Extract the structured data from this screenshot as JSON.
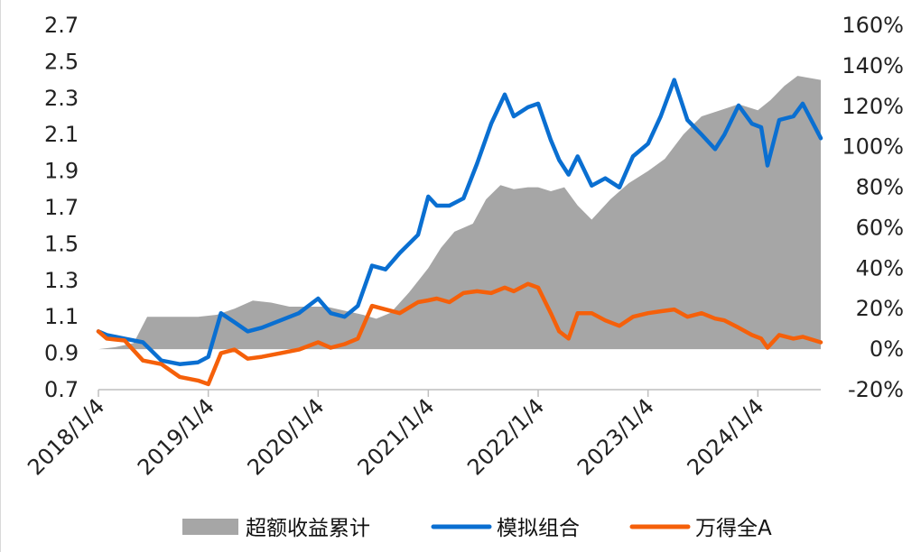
{
  "chart_data": {
    "type": "line",
    "title": "",
    "x_tick_labels": [
      "2018/1/4",
      "2019/1/4",
      "2020/1/4",
      "2021/1/4",
      "2022/1/4",
      "2023/1/4",
      "2024/1/4"
    ],
    "x_range": [
      "2018/1/4",
      "2024/7/31"
    ],
    "y_left": {
      "ticks": [
        0.7,
        0.9,
        1.1,
        1.3,
        1.5,
        1.7,
        1.9,
        2.1,
        2.3,
        2.5,
        2.7
      ],
      "ylim": [
        0.7,
        2.7
      ]
    },
    "y_right": {
      "ticks": [
        "-20%",
        "0%",
        "20%",
        "40%",
        "60%",
        "80%",
        "100%",
        "120%",
        "140%",
        "160%"
      ],
      "ylim": [
        -0.2,
        1.6
      ]
    },
    "grid": false,
    "legend_position": "bottom",
    "series": [
      {
        "name": "超额收益累计",
        "type": "area",
        "axis": "right",
        "color": "#a6a6a6",
        "x": [
          "2018-01-04",
          "2018-03-01",
          "2018-05-01",
          "2018-06-15",
          "2018-08-01",
          "2018-10-01",
          "2018-12-01",
          "2019-02-01",
          "2019-04-01",
          "2019-06-01",
          "2019-08-01",
          "2019-10-01",
          "2019-12-01",
          "2020-02-01",
          "2020-04-01",
          "2020-06-01",
          "2020-07-15",
          "2020-09-01",
          "2020-11-01",
          "2021-01-04",
          "2021-02-15",
          "2021-04-01",
          "2021-06-01",
          "2021-07-15",
          "2021-09-01",
          "2021-10-15",
          "2021-12-01",
          "2022-01-04",
          "2022-02-15",
          "2022-04-01",
          "2022-05-15",
          "2022-07-01",
          "2022-09-01",
          "2022-11-01",
          "2023-01-04",
          "2023-03-01",
          "2023-05-01",
          "2023-07-01",
          "2023-09-01",
          "2023-11-01",
          "2024-01-04",
          "2024-02-15",
          "2024-04-01",
          "2024-05-15",
          "2024-07-31"
        ],
        "values": [
          0.0,
          0.01,
          0.03,
          0.16,
          0.16,
          0.16,
          0.16,
          0.17,
          0.2,
          0.24,
          0.23,
          0.21,
          0.21,
          0.21,
          0.19,
          0.17,
          0.15,
          0.18,
          0.28,
          0.4,
          0.5,
          0.58,
          0.62,
          0.74,
          0.81,
          0.79,
          0.8,
          0.8,
          0.78,
          0.8,
          0.71,
          0.64,
          0.74,
          0.82,
          0.88,
          0.94,
          1.06,
          1.15,
          1.18,
          1.21,
          1.18,
          1.23,
          1.3,
          1.35,
          1.33
        ]
      },
      {
        "name": "模拟组合",
        "type": "line",
        "axis": "left",
        "color": "#0a6fd1",
        "x": [
          "2018-01-04",
          "2018-02-01",
          "2018-04-01",
          "2018-06-01",
          "2018-08-01",
          "2018-10-01",
          "2018-12-01",
          "2019-01-04",
          "2019-02-15",
          "2019-04-01",
          "2019-05-15",
          "2019-07-01",
          "2019-09-01",
          "2019-11-01",
          "2020-01-04",
          "2020-02-15",
          "2020-04-01",
          "2020-05-15",
          "2020-07-01",
          "2020-08-15",
          "2020-10-01",
          "2020-12-01",
          "2021-01-04",
          "2021-02-01",
          "2021-03-15",
          "2021-05-01",
          "2021-06-15",
          "2021-08-01",
          "2021-09-15",
          "2021-10-15",
          "2021-12-01",
          "2022-01-04",
          "2022-02-15",
          "2022-03-15",
          "2022-04-15",
          "2022-05-15",
          "2022-07-01",
          "2022-08-15",
          "2022-10-01",
          "2022-11-15",
          "2023-01-04",
          "2023-02-15",
          "2023-04-01",
          "2023-05-15",
          "2023-07-01",
          "2023-08-15",
          "2023-09-15",
          "2023-11-01",
          "2023-12-15",
          "2024-01-15",
          "2024-02-05",
          "2024-03-15",
          "2024-05-01",
          "2024-06-01",
          "2024-07-31"
        ],
        "values": [
          1.02,
          1.0,
          0.98,
          0.96,
          0.86,
          0.84,
          0.85,
          0.88,
          1.12,
          1.07,
          1.02,
          1.04,
          1.08,
          1.12,
          1.2,
          1.12,
          1.1,
          1.16,
          1.38,
          1.36,
          1.45,
          1.55,
          1.76,
          1.71,
          1.71,
          1.75,
          1.94,
          2.16,
          2.32,
          2.2,
          2.25,
          2.27,
          2.07,
          1.96,
          1.88,
          1.98,
          1.82,
          1.86,
          1.81,
          1.98,
          2.05,
          2.2,
          2.4,
          2.18,
          2.1,
          2.02,
          2.1,
          2.26,
          2.16,
          2.14,
          1.93,
          2.18,
          2.2,
          2.27,
          2.08
        ]
      },
      {
        "name": "万得全A",
        "type": "line",
        "axis": "left",
        "color": "#f5600a",
        "x": [
          "2018-01-04",
          "2018-02-01",
          "2018-04-01",
          "2018-06-01",
          "2018-08-01",
          "2018-10-01",
          "2018-12-01",
          "2019-01-04",
          "2019-02-15",
          "2019-04-01",
          "2019-05-15",
          "2019-07-01",
          "2019-09-01",
          "2019-11-01",
          "2020-01-04",
          "2020-02-15",
          "2020-04-01",
          "2020-05-15",
          "2020-07-01",
          "2020-08-15",
          "2020-10-01",
          "2020-12-01",
          "2021-01-04",
          "2021-02-01",
          "2021-03-15",
          "2021-05-01",
          "2021-06-15",
          "2021-08-01",
          "2021-09-15",
          "2021-10-15",
          "2021-12-01",
          "2022-01-04",
          "2022-02-15",
          "2022-03-15",
          "2022-04-15",
          "2022-05-15",
          "2022-07-01",
          "2022-08-15",
          "2022-10-01",
          "2022-11-15",
          "2023-01-04",
          "2023-02-15",
          "2023-04-01",
          "2023-05-15",
          "2023-07-01",
          "2023-08-15",
          "2023-09-15",
          "2023-11-01",
          "2023-12-15",
          "2024-01-15",
          "2024-02-05",
          "2024-03-15",
          "2024-05-01",
          "2024-06-01",
          "2024-07-31"
        ],
        "values": [
          1.02,
          0.98,
          0.97,
          0.86,
          0.84,
          0.77,
          0.75,
          0.73,
          0.9,
          0.92,
          0.87,
          0.88,
          0.9,
          0.92,
          0.96,
          0.93,
          0.95,
          0.98,
          1.16,
          1.14,
          1.12,
          1.18,
          1.19,
          1.2,
          1.18,
          1.23,
          1.24,
          1.23,
          1.26,
          1.24,
          1.28,
          1.26,
          1.12,
          1.02,
          0.98,
          1.12,
          1.12,
          1.08,
          1.05,
          1.1,
          1.12,
          1.13,
          1.14,
          1.1,
          1.12,
          1.09,
          1.08,
          1.04,
          1.0,
          0.98,
          0.93,
          1.0,
          0.98,
          0.99,
          0.96
        ]
      }
    ]
  }
}
